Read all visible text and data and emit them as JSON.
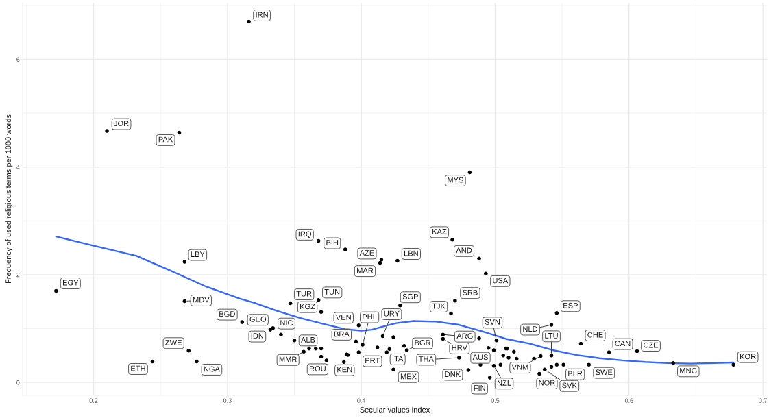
{
  "chart_data": {
    "type": "scatter",
    "xlabel": "Secular values index",
    "ylabel": "Frequency of used religious terms per 1000 words",
    "xlim": [
      0.147,
      0.703
    ],
    "ylim": [
      -0.24,
      7.05
    ],
    "xticks": [
      {
        "value": 0.15,
        "label": null
      },
      0.2,
      {
        "value": 0.25,
        "label": null
      },
      0.3,
      {
        "value": 0.35,
        "label": null
      },
      0.4,
      {
        "value": 0.45,
        "label": null
      },
      0.5,
      {
        "value": 0.55,
        "label": null
      },
      0.6,
      {
        "value": 0.65,
        "label": null
      },
      0.7
    ],
    "yticks": [
      0,
      {
        "value": 1,
        "label": null
      },
      2,
      {
        "value": 3,
        "label": null
      },
      4,
      {
        "value": 5,
        "label": null
      },
      6,
      {
        "value": 7,
        "label": null
      }
    ],
    "grid": true,
    "line_style": "solid",
    "series": [
      {
        "color": "#000000",
        "marker": "circle",
        "x": [
          0.316,
          0.21,
          0.264,
          0.172,
          0.268,
          0.268,
          0.311,
          0.334,
          0.332,
          0.34,
          0.271,
          0.244,
          0.277,
          0.368,
          0.388,
          0.415,
          0.414,
          0.427,
          0.468,
          0.488,
          0.493,
          0.481,
          0.347,
          0.368,
          0.37,
          0.398,
          0.396,
          0.401,
          0.416,
          0.35,
          0.357,
          0.374,
          0.387,
          0.419,
          0.421,
          0.424,
          0.434,
          0.429,
          0.47,
          0.467,
          0.461,
          0.461,
          0.473,
          0.48,
          0.489,
          0.496,
          0.499,
          0.501,
          0.542,
          0.546,
          0.564,
          0.542,
          0.534,
          0.533,
          0.537,
          0.551,
          0.57,
          0.585,
          0.606,
          0.633,
          0.678,
          0.361,
          0.366,
          0.37,
          0.37,
          0.389,
          0.39,
          0.398,
          0.412,
          0.424,
          0.432,
          0.488,
          0.495,
          0.499,
          0.504,
          0.506,
          0.508,
          0.509,
          0.51,
          0.514,
          0.516,
          0.529,
          0.542,
          0.546
        ],
        "values": [
          6.7,
          4.67,
          4.64,
          1.7,
          2.24,
          1.51,
          1.12,
          1.01,
          0.98,
          0.89,
          0.59,
          0.39,
          0.39,
          2.63,
          2.47,
          2.28,
          2.22,
          2.26,
          2.65,
          2.3,
          2.02,
          3.9,
          1.47,
          1.53,
          1.31,
          1.06,
          0.76,
          0.7,
          0.86,
          0.78,
          0.57,
          0.41,
          0.38,
          0.56,
          0.62,
          0.24,
          0.6,
          1.43,
          1.52,
          1.28,
          0.89,
          0.81,
          0.46,
          0.23,
          0.33,
          0.09,
          0.31,
          0.78,
          1.07,
          1.29,
          0.72,
          0.5,
          0.49,
          0.16,
          0.24,
          0.33,
          0.33,
          0.56,
          0.58,
          0.36,
          0.33,
          0.63,
          0.63,
          0.63,
          0.48,
          0.52,
          0.51,
          0.56,
          0.65,
          0.84,
          0.68,
          0.82,
          0.64,
          0.6,
          0.33,
          0.5,
          0.63,
          0.63,
          0.46,
          0.57,
          0.44,
          0.44,
          0.29,
          0.33
        ]
      },
      {
        "type": "line",
        "color": "#3366ff",
        "x": [
          0.172,
          0.198,
          0.232,
          0.258,
          0.284,
          0.309,
          0.32,
          0.337,
          0.354,
          0.371,
          0.388,
          0.4,
          0.408,
          0.415,
          0.426,
          0.439,
          0.456,
          0.473,
          0.49,
          0.508,
          0.526,
          0.543,
          0.561,
          0.578,
          0.595,
          0.612,
          0.629,
          0.646,
          0.663,
          0.678
        ],
        "values": [
          2.71,
          2.55,
          2.35,
          2.07,
          1.78,
          1.56,
          1.48,
          1.33,
          1.2,
          1.09,
          0.99,
          0.96,
          0.98,
          1.03,
          1.1,
          1.14,
          1.13,
          1.07,
          0.95,
          0.81,
          0.72,
          0.6,
          0.51,
          0.45,
          0.41,
          0.38,
          0.36,
          0.35,
          0.36,
          0.37
        ]
      }
    ],
    "annotations": [
      {
        "text": "IRN",
        "x": 0.316,
        "y": 6.7
      },
      {
        "text": "JOR",
        "x": 0.21,
        "y": 4.67
      },
      {
        "text": "PAK",
        "x": 0.264,
        "y": 4.64
      },
      {
        "text": "EGY",
        "x": 0.172,
        "y": 1.7
      },
      {
        "text": "LBY",
        "x": 0.268,
        "y": 2.24
      },
      {
        "text": "MDV",
        "x": 0.268,
        "y": 1.51
      },
      {
        "text": "BGD",
        "x": 0.311,
        "y": 1.12
      },
      {
        "text": "GEO",
        "x": 0.334,
        "y": 1.01
      },
      {
        "text": "IDN",
        "x": 0.332,
        "y": 0.98
      },
      {
        "text": "NIC",
        "x": 0.34,
        "y": 0.89
      },
      {
        "text": "ZWE",
        "x": 0.271,
        "y": 0.59
      },
      {
        "text": "ETH",
        "x": 0.244,
        "y": 0.39
      },
      {
        "text": "NGA",
        "x": 0.277,
        "y": 0.39
      },
      {
        "text": "IRQ",
        "x": 0.368,
        "y": 2.63
      },
      {
        "text": "BIH",
        "x": 0.388,
        "y": 2.47
      },
      {
        "text": "AZE",
        "x": 0.415,
        "y": 2.28
      },
      {
        "text": "MAR",
        "x": 0.414,
        "y": 2.22
      },
      {
        "text": "LBN",
        "x": 0.427,
        "y": 2.26
      },
      {
        "text": "KAZ",
        "x": 0.468,
        "y": 2.65
      },
      {
        "text": "AND",
        "x": 0.488,
        "y": 2.3
      },
      {
        "text": "USA",
        "x": 0.493,
        "y": 2.02
      },
      {
        "text": "MYS",
        "x": 0.481,
        "y": 3.9
      },
      {
        "text": "TUR",
        "x": 0.347,
        "y": 1.47
      },
      {
        "text": "TUN",
        "x": 0.368,
        "y": 1.53
      },
      {
        "text": "KGZ",
        "x": 0.37,
        "y": 1.31
      },
      {
        "text": "VEN",
        "x": 0.398,
        "y": 1.06
      },
      {
        "text": "BRA",
        "x": 0.396,
        "y": 0.76
      },
      {
        "text": "PHL",
        "x": 0.401,
        "y": 0.7
      },
      {
        "text": "URY",
        "x": 0.416,
        "y": 0.86
      },
      {
        "text": "ALB",
        "x": 0.35,
        "y": 0.78
      },
      {
        "text": "MMR",
        "x": 0.357,
        "y": 0.57
      },
      {
        "text": "ROU",
        "x": 0.374,
        "y": 0.41
      },
      {
        "text": "KEN",
        "x": 0.387,
        "y": 0.38
      },
      {
        "text": "PRT",
        "x": 0.419,
        "y": 0.56
      },
      {
        "text": "ITA",
        "x": 0.421,
        "y": 0.62
      },
      {
        "text": "MEX",
        "x": 0.424,
        "y": 0.24
      },
      {
        "text": "BGR",
        "x": 0.434,
        "y": 0.6
      },
      {
        "text": "SGP",
        "x": 0.429,
        "y": 1.43
      },
      {
        "text": "SRB",
        "x": 0.47,
        "y": 1.52
      },
      {
        "text": "TJK",
        "x": 0.467,
        "y": 1.28
      },
      {
        "text": "ARG",
        "x": 0.461,
        "y": 0.89
      },
      {
        "text": "HRV",
        "x": 0.461,
        "y": 0.81
      },
      {
        "text": "THA",
        "x": 0.473,
        "y": 0.46
      },
      {
        "text": "DNK",
        "x": 0.48,
        "y": 0.23
      },
      {
        "text": "AUS",
        "x": 0.489,
        "y": 0.33
      },
      {
        "text": "FIN",
        "x": 0.496,
        "y": 0.09
      },
      {
        "text": "NZL",
        "x": 0.499,
        "y": 0.31
      },
      {
        "text": "SVN",
        "x": 0.501,
        "y": 0.78
      },
      {
        "text": "NLD",
        "x": 0.542,
        "y": 1.07
      },
      {
        "text": "ESP",
        "x": 0.546,
        "y": 1.29
      },
      {
        "text": "CHE",
        "x": 0.564,
        "y": 0.72
      },
      {
        "text": "LTU",
        "x": 0.542,
        "y": 0.5
      },
      {
        "text": "VNM",
        "x": 0.534,
        "y": 0.49
      },
      {
        "text": "NOR",
        "x": 0.533,
        "y": 0.16
      },
      {
        "text": "SVK",
        "x": 0.537,
        "y": 0.24
      },
      {
        "text": "BLR",
        "x": 0.551,
        "y": 0.33
      },
      {
        "text": "SWE",
        "x": 0.57,
        "y": 0.33
      },
      {
        "text": "CAN",
        "x": 0.585,
        "y": 0.56
      },
      {
        "text": "CZE",
        "x": 0.606,
        "y": 0.58
      },
      {
        "text": "MNG",
        "x": 0.633,
        "y": 0.36
      },
      {
        "text": "KOR",
        "x": 0.678,
        "y": 0.33
      }
    ]
  }
}
